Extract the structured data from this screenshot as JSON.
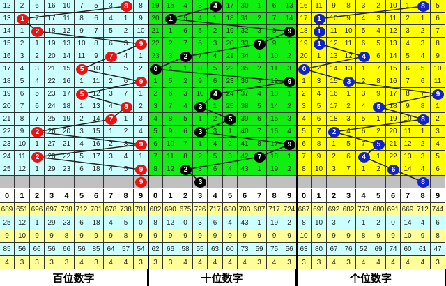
{
  "chart_data": {
    "type": "table",
    "panels": [
      {
        "label": "百位数字",
        "bg": "#ccffff",
        "ball": "#ee1111",
        "rows": [
          [
            12,
            2,
            6,
            16,
            10,
            7,
            5,
            3,
            8,
            8
          ],
          [
            13,
            1,
            7,
            17,
            11,
            8,
            6,
            4,
            1,
            9
          ],
          [
            14,
            1,
            2,
            18,
            12,
            9,
            7,
            5,
            2,
            10
          ],
          [
            15,
            2,
            1,
            19,
            13,
            10,
            8,
            6,
            3,
            9
          ],
          [
            16,
            3,
            2,
            20,
            14,
            11,
            9,
            7,
            4,
            1
          ],
          [
            17,
            4,
            3,
            21,
            15,
            5,
            10,
            1,
            5,
            2
          ],
          [
            18,
            5,
            4,
            22,
            16,
            1,
            11,
            2,
            6,
            9
          ],
          [
            19,
            6,
            5,
            23,
            17,
            5,
            12,
            3,
            7,
            1
          ],
          [
            20,
            7,
            6,
            24,
            18,
            1,
            13,
            4,
            8,
            2
          ],
          [
            21,
            8,
            7,
            25,
            19,
            2,
            14,
            7,
            1,
            3
          ],
          [
            22,
            9,
            2,
            26,
            20,
            3,
            15,
            1,
            2,
            4
          ],
          [
            23,
            10,
            1,
            27,
            21,
            4,
            16,
            2,
            3,
            9
          ],
          [
            24,
            11,
            2,
            28,
            22,
            5,
            17,
            3,
            4,
            1
          ],
          [
            25,
            12,
            1,
            29,
            23,
            6,
            18,
            4,
            5,
            9
          ]
        ],
        "drawn": [
          8,
          1,
          2,
          9,
          7,
          5,
          9,
          5,
          8,
          7,
          2,
          9,
          2,
          9,
          9
        ],
        "stats": [
          [
            689,
            651,
            696,
            697,
            738,
            712,
            701,
            678,
            738,
            701
          ],
          [
            25,
            12,
            1,
            29,
            23,
            6,
            18,
            4,
            5,
            0
          ],
          [
            9,
            10,
            9,
            9,
            8,
            9,
            9,
            9,
            8,
            9
          ],
          [
            85,
            56,
            66,
            56,
            66,
            56,
            85,
            64,
            57,
            54
          ],
          [
            4,
            3,
            3,
            3,
            3,
            4,
            3,
            4,
            4,
            3
          ]
        ]
      },
      {
        "label": "十位数字",
        "bg": "#11ee11",
        "ball": "#000000",
        "rows": [
          [
            19,
            15,
            4,
            3,
            4,
            17,
            30,
            1,
            6,
            13
          ],
          [
            20,
            1,
            5,
            4,
            1,
            18,
            31,
            2,
            7,
            14
          ],
          [
            21,
            1,
            6,
            5,
            2,
            19,
            32,
            3,
            8,
            9
          ],
          [
            22,
            2,
            7,
            6,
            3,
            20,
            33,
            7,
            9,
            1
          ],
          [
            23,
            3,
            2,
            7,
            4,
            21,
            34,
            1,
            10,
            2
          ],
          [
            0,
            4,
            1,
            8,
            5,
            22,
            35,
            2,
            11,
            3
          ],
          [
            1,
            5,
            2,
            9,
            6,
            23,
            36,
            3,
            12,
            9
          ],
          [
            2,
            6,
            3,
            10,
            4,
            24,
            37,
            4,
            13,
            1
          ],
          [
            3,
            7,
            4,
            3,
            1,
            25,
            38,
            5,
            14,
            2
          ],
          [
            4,
            8,
            5,
            1,
            2,
            5,
            39,
            6,
            15,
            3
          ],
          [
            5,
            9,
            6,
            3,
            3,
            1,
            40,
            7,
            16,
            4
          ],
          [
            6,
            10,
            7,
            1,
            4,
            2,
            41,
            8,
            17,
            9
          ],
          [
            7,
            11,
            8,
            2,
            5,
            3,
            42,
            7,
            18,
            1
          ],
          [
            8,
            12,
            2,
            3,
            6,
            4,
            43,
            1,
            19,
            2
          ]
        ],
        "drawn": [
          4,
          1,
          9,
          7,
          2,
          0,
          9,
          4,
          3,
          5,
          3,
          9,
          7,
          2,
          3
        ],
        "stats": [
          [
            682,
            690,
            675,
            726,
            717,
            680,
            703,
            687,
            717,
            724
          ],
          [
            8,
            12,
            0,
            3,
            6,
            4,
            43,
            1,
            19,
            2
          ],
          [
            9,
            9,
            9,
            9,
            9,
            9,
            9,
            9,
            9,
            9
          ],
          [
            62,
            66,
            58,
            55,
            63,
            60,
            73,
            59,
            75,
            56
          ],
          [
            3,
            3,
            4,
            4,
            4,
            4,
            4,
            3,
            4,
            3
          ]
        ]
      },
      {
        "label": "个位数字",
        "bg": "#ffff00",
        "ball": "#1122cc",
        "rows": [
          [
            16,
            11,
            9,
            8,
            3,
            2,
            10,
            1,
            8,
            5
          ],
          [
            17,
            1,
            10,
            9,
            4,
            3,
            11,
            2,
            1,
            6
          ],
          [
            18,
            1,
            11,
            10,
            5,
            4,
            12,
            3,
            2,
            7
          ],
          [
            19,
            1,
            12,
            11,
            6,
            5,
            13,
            4,
            3,
            8
          ],
          [
            20,
            1,
            13,
            12,
            4,
            6,
            14,
            5,
            4,
            9
          ],
          [
            0,
            2,
            14,
            13,
            1,
            7,
            15,
            6,
            5,
            10
          ],
          [
            1,
            3,
            15,
            3,
            2,
            8,
            16,
            7,
            6,
            11
          ],
          [
            2,
            4,
            16,
            1,
            3,
            9,
            17,
            8,
            7,
            9
          ],
          [
            3,
            5,
            17,
            2,
            4,
            5,
            18,
            9,
            8,
            1
          ],
          [
            4,
            6,
            18,
            3,
            5,
            1,
            19,
            10,
            8,
            2
          ],
          [
            5,
            7,
            2,
            4,
            6,
            2,
            20,
            11,
            1,
            3
          ],
          [
            6,
            8,
            1,
            5,
            7,
            5,
            21,
            12,
            2,
            4
          ],
          [
            7,
            9,
            2,
            6,
            4,
            1,
            22,
            13,
            3,
            5
          ],
          [
            8,
            10,
            3,
            7,
            1,
            2,
            6,
            14,
            4,
            6
          ]
        ],
        "drawn": [
          8,
          1,
          1,
          1,
          4,
          0,
          3,
          9,
          5,
          8,
          2,
          5,
          4,
          6,
          8
        ],
        "stats": [
          [
            667,
            691,
            692,
            682,
            773,
            680,
            691,
            669,
            712,
            744
          ],
          [
            8,
            10,
            3,
            7,
            1,
            2,
            0,
            14,
            4,
            6
          ],
          [
            10,
            9,
            9,
            9,
            8,
            9,
            9,
            10,
            9,
            8
          ],
          [
            63,
            80,
            67,
            76,
            52,
            69,
            74,
            60,
            61,
            47
          ],
          [
            3,
            3,
            4,
            3,
            4,
            4,
            4,
            4,
            4,
            3
          ]
        ]
      }
    ],
    "digits": [
      0,
      1,
      2,
      3,
      4,
      5,
      6,
      7,
      8,
      9
    ],
    "stat_colors": [
      "#ffff99",
      "#ccffff"
    ],
    "gray": "#c0c0c0"
  }
}
